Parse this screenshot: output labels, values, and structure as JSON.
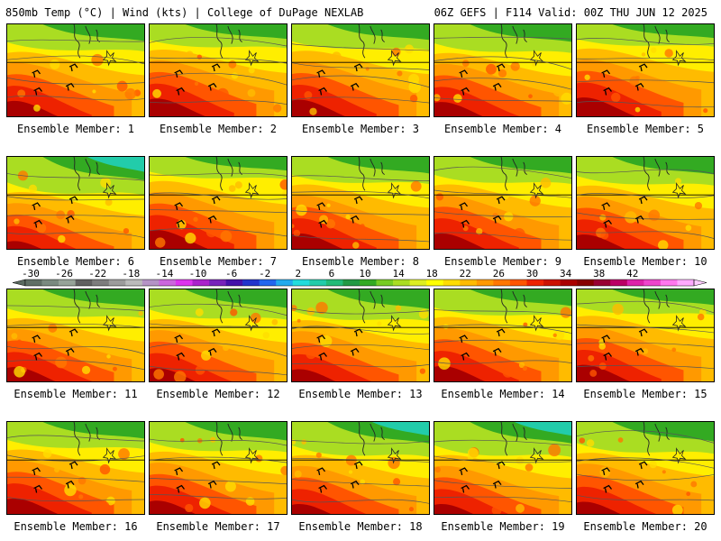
{
  "header": {
    "left": "850mb Temp (°C) | Wind (kts) | College of DuPage NEXLAB",
    "right": "06Z GEFS | F114 Valid: 00Z THU JUN 12 2025"
  },
  "panels": [
    {
      "label": "Ensemble Member: 1",
      "warm": 0.7
    },
    {
      "label": "Ensemble Member: 2",
      "warm": 0.8
    },
    {
      "label": "Ensemble Member: 3",
      "warm": 0.75
    },
    {
      "label": "Ensemble Member: 4",
      "warm": 0.65
    },
    {
      "label": "Ensemble Member: 5",
      "warm": 0.85
    },
    {
      "label": "Ensemble Member: 6",
      "warm": 0.35
    },
    {
      "label": "Ensemble Member: 7",
      "warm": 0.85
    },
    {
      "label": "Ensemble Member: 8",
      "warm": 0.7
    },
    {
      "label": "Ensemble Member: 9",
      "warm": 0.7
    },
    {
      "label": "Ensemble Member: 10",
      "warm": 0.65
    },
    {
      "label": "Ensemble Member: 11",
      "warm": 0.65
    },
    {
      "label": "Ensemble Member: 12",
      "warm": 0.6
    },
    {
      "label": "Ensemble Member: 13",
      "warm": 0.55
    },
    {
      "label": "Ensemble Member: 14",
      "warm": 0.7
    },
    {
      "label": "Ensemble Member: 15",
      "warm": 0.75
    },
    {
      "label": "Ensemble Member: 16",
      "warm": 0.7
    },
    {
      "label": "Ensemble Member: 17",
      "warm": 0.6
    },
    {
      "label": "Ensemble Member: 18",
      "warm": 0.45
    },
    {
      "label": "Ensemble Member: 19",
      "warm": 0.45
    },
    {
      "label": "Ensemble Member: 20",
      "warm": 0.55
    }
  ],
  "colorbar": {
    "ticks": [
      "-30",
      "-26",
      "-22",
      "-18",
      "-14",
      "-10",
      "-6",
      "-2",
      "2",
      "6",
      "10",
      "14",
      "18",
      "22",
      "26",
      "30",
      "34",
      "38",
      "42"
    ],
    "colors": [
      "#5f6f65",
      "#7a8a80",
      "#96a398",
      "#606060",
      "#7d7d7d",
      "#9c9c9c",
      "#bbbbbb",
      "#b593c6",
      "#cc66dd",
      "#dd33ee",
      "#aa22cc",
      "#7722bb",
      "#4411aa",
      "#2233cc",
      "#2266ee",
      "#22aaee",
      "#22dddd",
      "#22ccaa",
      "#22bb77",
      "#229944",
      "#33aa22",
      "#77cc22",
      "#aadd22",
      "#ddee22",
      "#ffff00",
      "#ffdd00",
      "#ffbb00",
      "#ff9900",
      "#ff7700",
      "#ff5500",
      "#ee2200",
      "#cc1100",
      "#aa0000",
      "#880000",
      "#990033",
      "#bb0066",
      "#dd22aa",
      "#ee44cc",
      "#ff77ee",
      "#ffaaff"
    ]
  }
}
